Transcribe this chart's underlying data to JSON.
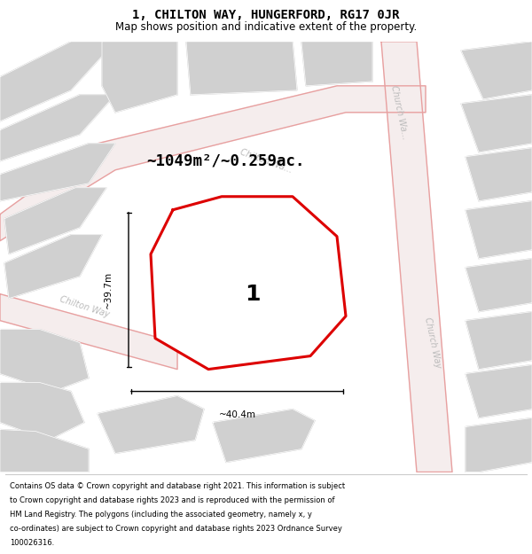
{
  "title": "1, CHILTON WAY, HUNGERFORD, RG17 0JR",
  "subtitle": "Map shows position and indicative extent of the property.",
  "title_fontsize": 10,
  "subtitle_fontsize": 8.5,
  "area_text": "~1049m²/~0.259ac.",
  "dim_width": "~40.4m",
  "dim_height": "~39.7m",
  "plot_label": "1",
  "plot_color": "#dd0000",
  "footer_lines": [
    "Contains OS data © Crown copyright and database right 2021. This information is subject",
    "to Crown copyright and database rights 2023 and is reproduced with the permission of",
    "HM Land Registry. The polygons (including the associated geometry, namely x, y",
    "co-ordinates) are subject to Crown copyright and database rights 2023 Ordnance Survey",
    "100026316."
  ]
}
